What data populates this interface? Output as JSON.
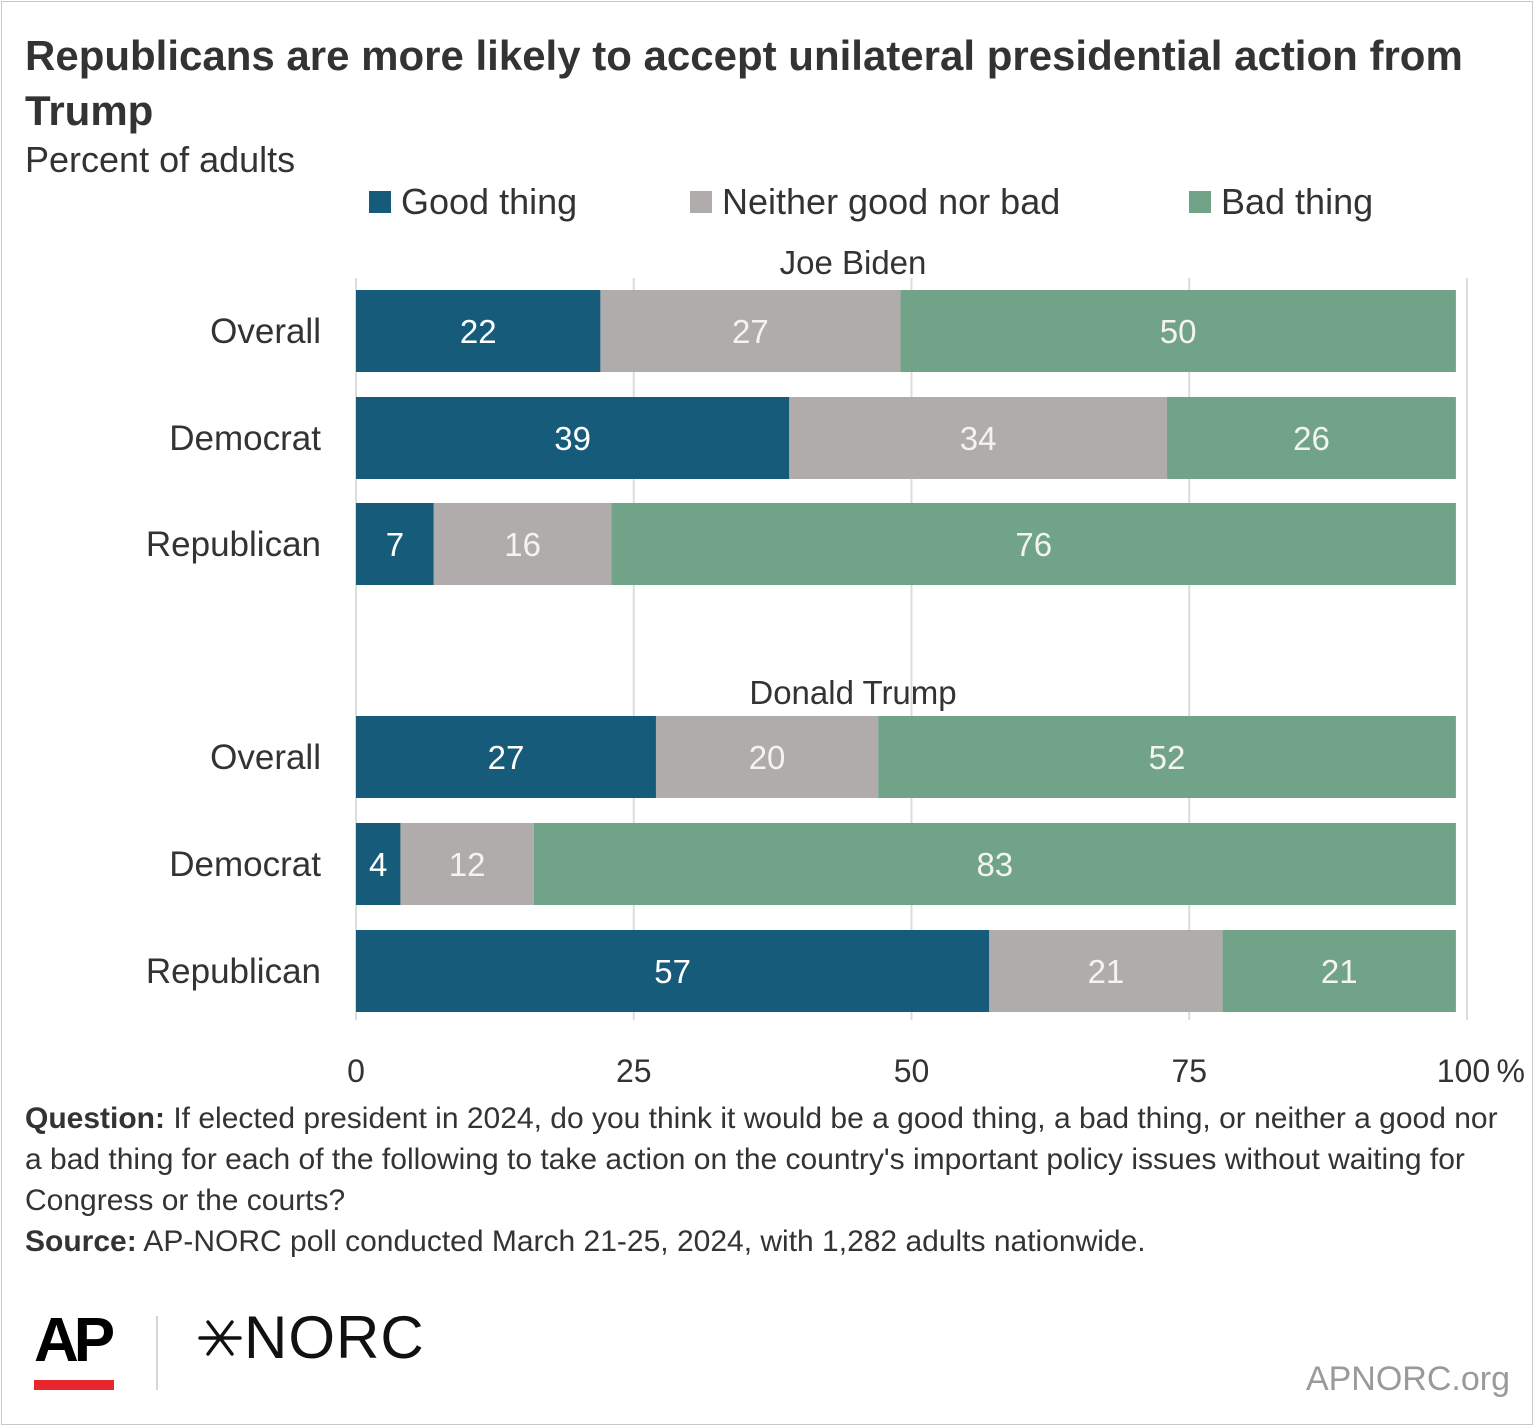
{
  "header": {
    "title": "Republicans are more likely to accept unilateral presidential action from Trump",
    "subtitle": "Percent of adults"
  },
  "legend": {
    "items": [
      {
        "label": "Good thing",
        "color": "#175b7b"
      },
      {
        "label": "Neither good nor bad",
        "color": "#b0acab"
      },
      {
        "label": "Bad thing",
        "color": "#70a387"
      }
    ]
  },
  "chart_data": {
    "type": "bar",
    "orientation": "horizontal",
    "stacked": true,
    "series": [
      {
        "name": "Good thing",
        "color": "#175b7b"
      },
      {
        "name": "Neither good nor bad",
        "color": "#b0acab"
      },
      {
        "name": "Bad thing",
        "color": "#70a387"
      }
    ],
    "panels": [
      {
        "title": "Joe Biden",
        "rows": [
          {
            "label": "Overall",
            "values": [
              22,
              27,
              50
            ]
          },
          {
            "label": "Democrat",
            "values": [
              39,
              34,
              26
            ]
          },
          {
            "label": "Republican",
            "values": [
              7,
              16,
              76
            ]
          }
        ]
      },
      {
        "title": "Donald Trump",
        "rows": [
          {
            "label": "Overall",
            "values": [
              27,
              20,
              52
            ]
          },
          {
            "label": "Democrat",
            "values": [
              4,
              12,
              83
            ]
          },
          {
            "label": "Republican",
            "values": [
              57,
              21,
              21
            ]
          }
        ]
      }
    ],
    "x_ticks": [
      "0",
      "25",
      "50",
      "75",
      "100"
    ],
    "x_unit": "%",
    "xlim": [
      0,
      100
    ],
    "grid": true,
    "legend_position": "top"
  },
  "footnote": {
    "question_label": "Question:",
    "question_text": " If elected president in 2024, do you think it would be a good thing, a bad thing, or neither a good nor a bad thing for each of the following to take action on the country's important policy issues without waiting for Congress or the courts?",
    "source_label": "Source:",
    "source_text": " AP-NORC poll conducted March 21-25, 2024, with 1,282 adults nationwide."
  },
  "branding": {
    "ap_logo": "AP",
    "norc_logo": "NORC",
    "site": "APNORC.org"
  }
}
